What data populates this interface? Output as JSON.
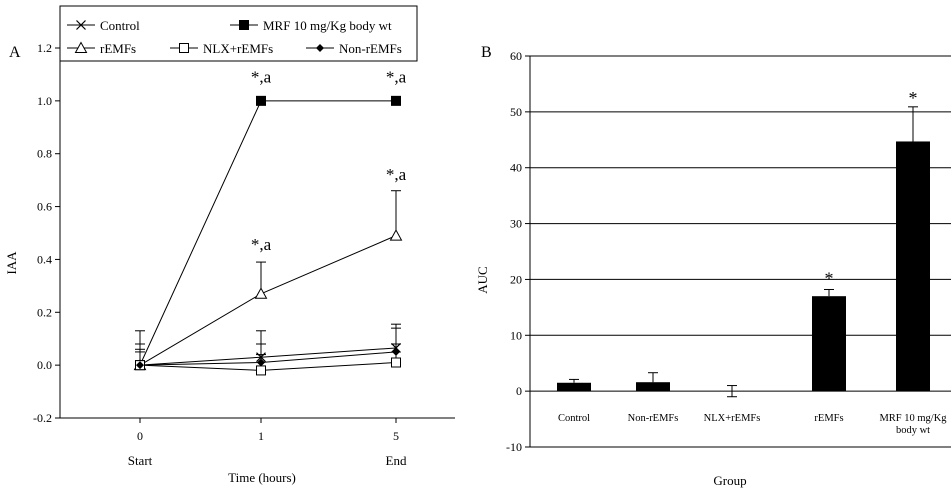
{
  "chart_data": [
    {
      "panel": "A",
      "type": "line",
      "xlabel": "Time (hours)",
      "ylabel": "IAA",
      "categories": [
        "0",
        "1",
        "5"
      ],
      "xsublabels": [
        "Start",
        "",
        "End"
      ],
      "yticks": [
        -0.2,
        0.0,
        0.2,
        0.4,
        0.6,
        0.8,
        1.0,
        1.2
      ],
      "ytick_labels": [
        "-0.2",
        "0.0",
        "0.2",
        "0.4",
        "0.6",
        "0.8",
        "1.0",
        "1.2"
      ],
      "ylim": [
        -0.2,
        1.2
      ],
      "grid": false,
      "legend_position": "top",
      "series": [
        {
          "name": "Control",
          "marker": "x",
          "values": [
            0.0,
            0.03,
            0.065
          ],
          "errors": [
            0.13,
            0.1,
            0.09
          ]
        },
        {
          "name": "MRF 10 mg/Kg body wt",
          "marker": "filled-square",
          "values": [
            0.0,
            1.0,
            1.0
          ],
          "errors": [
            0.0,
            0.0,
            0.0
          ]
        },
        {
          "name": "rEMFs",
          "marker": "open-triangle",
          "values": [
            0.0,
            0.27,
            0.49
          ],
          "errors": [
            0.06,
            0.12,
            0.17
          ]
        },
        {
          "name": "NLX+rEMFs",
          "marker": "open-square",
          "values": [
            0.0,
            -0.02,
            0.01
          ],
          "errors": [
            0.05,
            0.06,
            0.07
          ]
        },
        {
          "name": "Non-rEMFs",
          "marker": "filled-diamond",
          "values": [
            0.0,
            0.01,
            0.05
          ],
          "errors": [
            0.08,
            0.07,
            0.09
          ]
        }
      ],
      "annotations": [
        {
          "text": "*,a",
          "x": "1",
          "y": 1.07
        },
        {
          "text": "*,a",
          "x": "5",
          "y": 1.07
        },
        {
          "text": "*,a",
          "x": "1",
          "y": 0.435
        },
        {
          "text": "*,a",
          "x": "5",
          "y": 0.7
        }
      ]
    },
    {
      "panel": "B",
      "type": "bar",
      "xlabel": "Group",
      "ylabel": "AUC",
      "categories": [
        "Control",
        "Non-rEMFs",
        "NLX+rEMFs",
        "rEMFs",
        "MRF 10 mg/Kg body wt"
      ],
      "category_lines": [
        [
          "Control"
        ],
        [
          "Non-rEMFs"
        ],
        [
          "NLX+rEMFs"
        ],
        [
          "rEMFs"
        ],
        [
          "MRF 10 mg/Kg",
          "body wt"
        ]
      ],
      "values": [
        1.5,
        1.6,
        0.0,
        17.0,
        44.7
      ],
      "errors": [
        0.6,
        1.7,
        1.0,
        1.2,
        6.2
      ],
      "yticks": [
        -10,
        0,
        10,
        20,
        30,
        40,
        50,
        60
      ],
      "ytick_labels": [
        "-10",
        "0",
        "10",
        "20",
        "30",
        "40",
        "50",
        "60"
      ],
      "ylim": [
        -10,
        60
      ],
      "grid": true,
      "bar_color": "#000000",
      "annotations": [
        {
          "text": "*",
          "category": "rEMFs",
          "y": 20.5
        },
        {
          "text": "*",
          "category": "MRF 10 mg/Kg body wt",
          "y": 52.8
        }
      ]
    }
  ]
}
